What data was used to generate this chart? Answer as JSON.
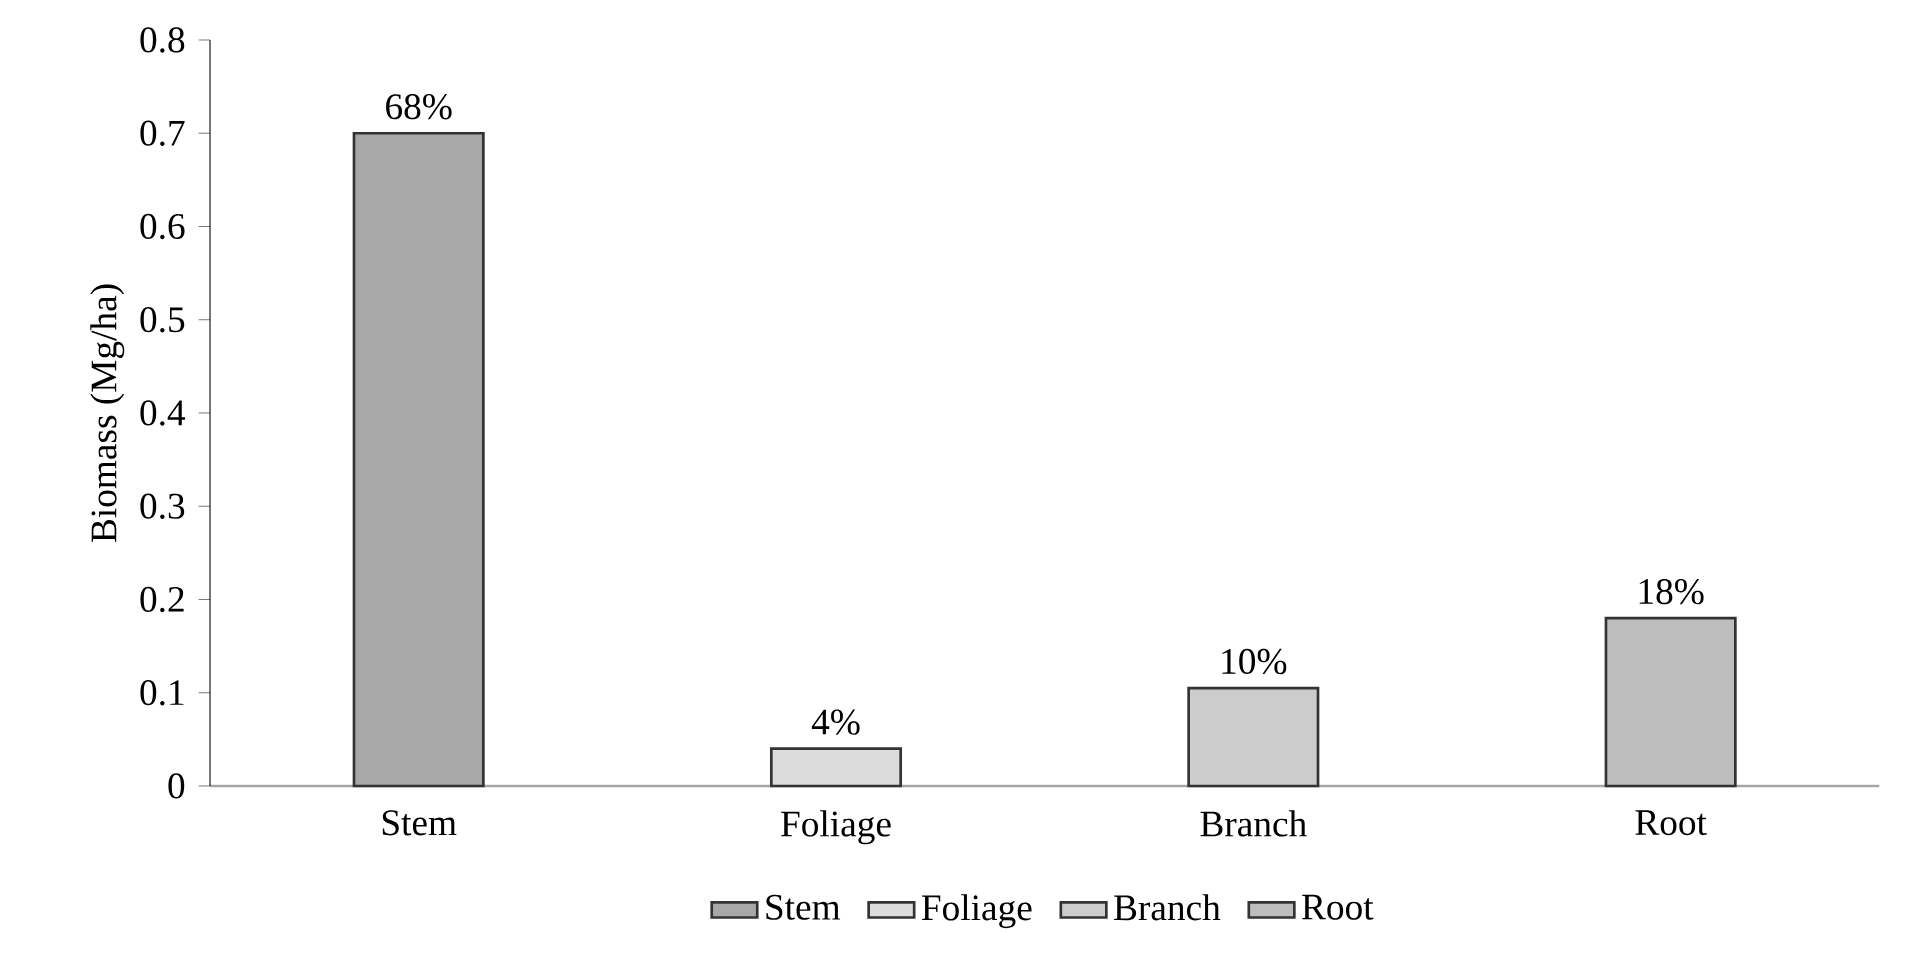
{
  "chart_data": {
    "type": "bar",
    "ylabel": "Biomass (Mg/ha)",
    "categories": [
      "Stem",
      "Foliage",
      "Branch",
      "Root"
    ],
    "series": [
      {
        "name": "Stem",
        "color": "#a8a8a8",
        "values": [
          0.7,
          null,
          null,
          null
        ]
      },
      {
        "name": "Foliage",
        "color": "#dcdcdc",
        "values": [
          null,
          0.04,
          null,
          null
        ]
      },
      {
        "name": "Branch",
        "color": "#cccccc",
        "values": [
          null,
          null,
          0.105,
          null
        ]
      },
      {
        "name": "Root",
        "color": "#bdbdbd",
        "values": [
          null,
          null,
          null,
          0.18
        ]
      }
    ],
    "annotations": [
      {
        "text": "68%",
        "x": "Stem",
        "y": 0.7
      },
      {
        "text": "4%",
        "x": "Foliage",
        "y": 0.04
      },
      {
        "text": "10%",
        "x": "Branch",
        "y": 0.105
      },
      {
        "text": "18%",
        "x": "Root",
        "y": 0.18
      }
    ],
    "ylim": [
      0,
      0.8
    ],
    "yticks": [
      0,
      0.1,
      0.2,
      0.3,
      0.4,
      0.5,
      0.6,
      0.7,
      0.8
    ],
    "grid": false,
    "legend": "bottom"
  }
}
